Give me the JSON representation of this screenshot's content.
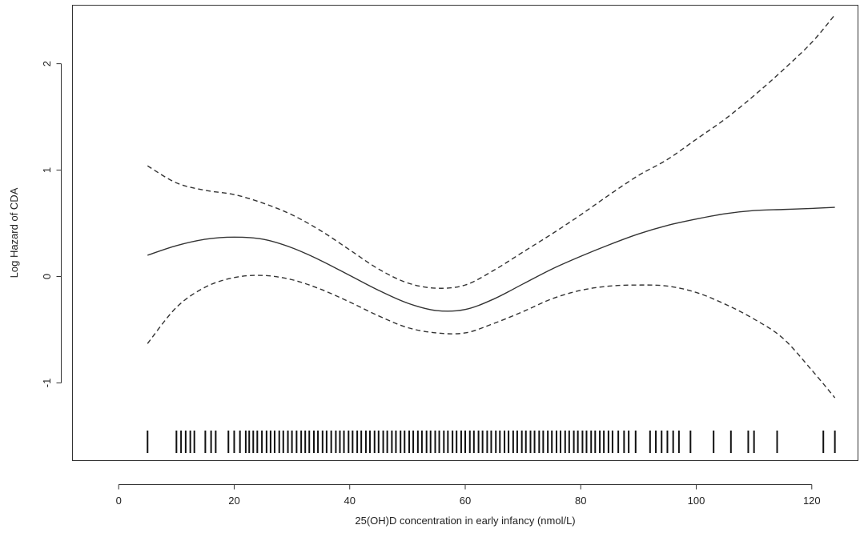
{
  "chart_data": {
    "type": "line",
    "title": "",
    "xlabel": "25(OH)D concentration in early infancy (nmol/L)",
    "ylabel": "Log Hazard of CDA",
    "xlim": [
      -8,
      128
    ],
    "ylim": [
      -1.73,
      2.55
    ],
    "x_ticks": [
      0,
      20,
      40,
      60,
      80,
      100,
      120
    ],
    "y_ticks": [
      -1,
      0,
      1,
      2
    ],
    "grid": false,
    "legend": "none",
    "series": [
      {
        "style": "solid",
        "color": "#333333",
        "x": [
          5,
          10,
          15,
          20,
          25,
          30,
          35,
          40,
          45,
          50,
          55,
          60,
          65,
          70,
          75,
          80,
          85,
          90,
          95,
          100,
          105,
          110,
          115,
          120,
          124
        ],
        "y": [
          0.2,
          0.29,
          0.35,
          0.37,
          0.35,
          0.27,
          0.15,
          0.01,
          -0.13,
          -0.25,
          -0.32,
          -0.31,
          -0.21,
          -0.07,
          0.07,
          0.19,
          0.3,
          0.4,
          0.48,
          0.54,
          0.59,
          0.62,
          0.63,
          0.64,
          0.65
        ]
      },
      {
        "style": "dashed",
        "color": "#333333",
        "x": [
          5,
          10,
          15,
          20,
          25,
          30,
          35,
          40,
          45,
          50,
          55,
          60,
          65,
          70,
          75,
          80,
          85,
          90,
          95,
          100,
          105,
          110,
          115,
          120,
          124
        ],
        "y": [
          1.04,
          0.88,
          0.81,
          0.77,
          0.69,
          0.58,
          0.43,
          0.25,
          0.07,
          -0.06,
          -0.11,
          -0.08,
          0.06,
          0.23,
          0.4,
          0.58,
          0.77,
          0.95,
          1.1,
          1.29,
          1.48,
          1.7,
          1.94,
          2.2,
          2.46
        ]
      },
      {
        "style": "dashed",
        "color": "#333333",
        "x": [
          5,
          10,
          15,
          20,
          25,
          30,
          35,
          40,
          45,
          50,
          55,
          60,
          65,
          70,
          75,
          80,
          85,
          90,
          95,
          100,
          105,
          110,
          115,
          120,
          124
        ],
        "y": [
          -0.63,
          -0.29,
          -0.1,
          -0.01,
          0.01,
          -0.03,
          -0.12,
          -0.24,
          -0.37,
          -0.48,
          -0.53,
          -0.53,
          -0.44,
          -0.33,
          -0.21,
          -0.13,
          -0.09,
          -0.08,
          -0.09,
          -0.15,
          -0.26,
          -0.4,
          -0.58,
          -0.88,
          -1.14
        ]
      }
    ],
    "rug": [
      5,
      10,
      10.8,
      11.6,
      12.4,
      13.1,
      15,
      16,
      16.8,
      19,
      20,
      21,
      22,
      22.6,
      23.3,
      24,
      24.8,
      25.6,
      26.3,
      27,
      27.8,
      28.5,
      29.3,
      30,
      30.8,
      31.6,
      32.3,
      33,
      33.8,
      34.5,
      35.3,
      36,
      36.8,
      37.6,
      38.3,
      39,
      39.8,
      40.5,
      41.3,
      42,
      42.8,
      43.5,
      44.3,
      45,
      45.8,
      46.5,
      47.3,
      48,
      48.8,
      49.5,
      50.3,
      51,
      51.8,
      52.5,
      53.3,
      54,
      54.8,
      55.5,
      56.3,
      57,
      57.8,
      58.5,
      59.3,
      60,
      60.8,
      61.5,
      62.3,
      63,
      63.8,
      64.5,
      65.3,
      66,
      66.8,
      67.5,
      68.3,
      69,
      69.8,
      70.5,
      71.3,
      72,
      72.8,
      73.5,
      74.3,
      75,
      75.8,
      76.5,
      77.3,
      78,
      78.8,
      79.5,
      80.3,
      81,
      81.8,
      82.5,
      83.3,
      84,
      84.8,
      85.5,
      86.5,
      87.5,
      88.3,
      89.5,
      92,
      93,
      94,
      95,
      96,
      97,
      99,
      103,
      106,
      109,
      110,
      114,
      122,
      124
    ]
  }
}
